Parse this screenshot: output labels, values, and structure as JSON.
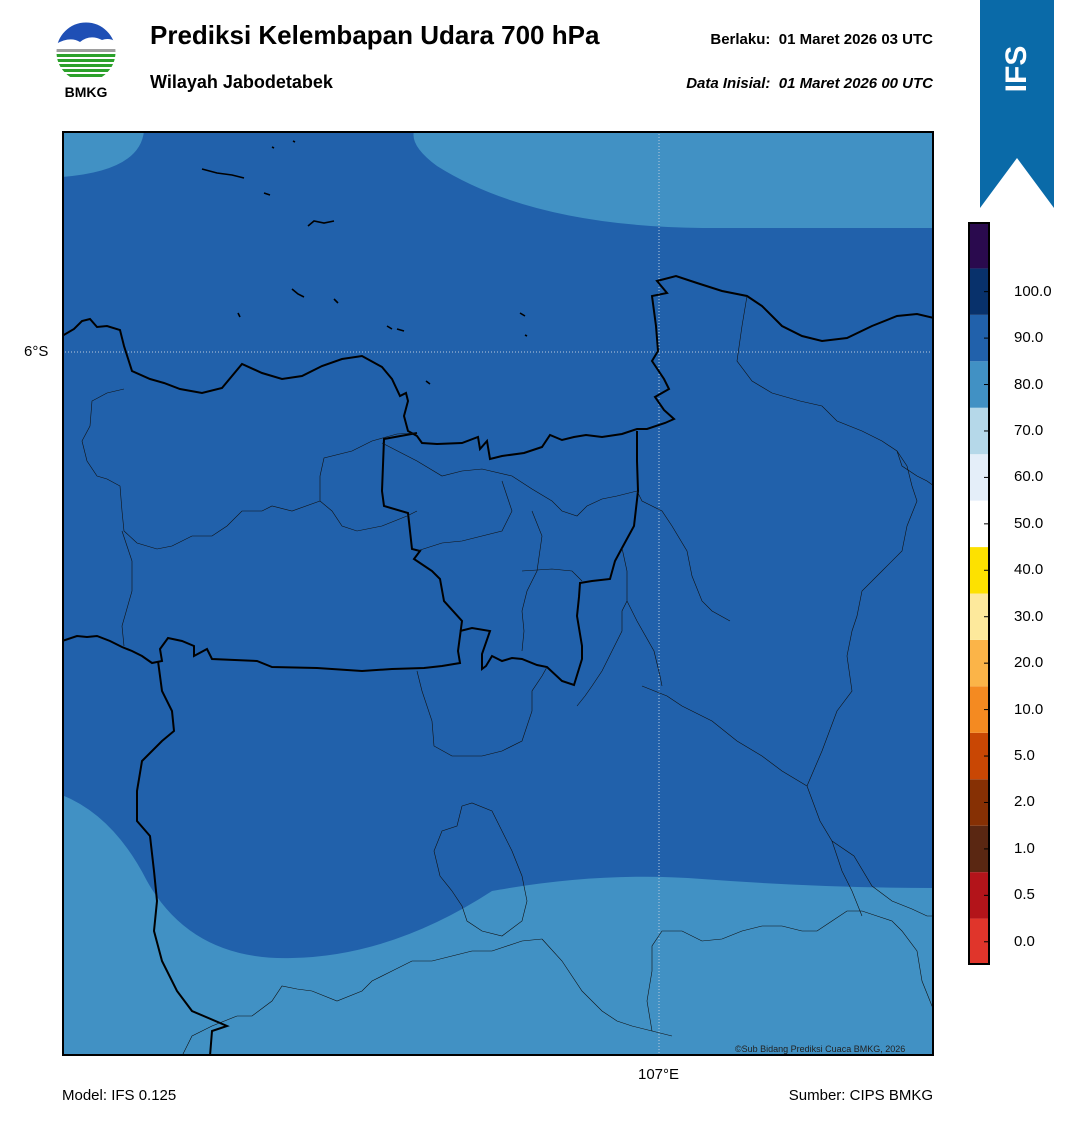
{
  "header": {
    "logo_text": "BMKG",
    "title": "Prediksi Kelembapan Udara 700 hPa",
    "subtitle": "Wilayah Jabodetabek",
    "valid_label": "Berlaku:",
    "valid_time": "01 Maret 2026 03 UTC",
    "init_label": "Data Inisial:",
    "init_time": "01 Maret 2026 00 UTC",
    "ribbon_text": "IFS",
    "ribbon_color": "#0a6aa8"
  },
  "map": {
    "lat_label": "6°S",
    "lon_label": "107°E",
    "credit": "©Sub Bidang Prediksi Cuaca BMKG, 2026",
    "fill_colors": {
      "dark": "#2161ab",
      "light": "#4191c4"
    }
  },
  "colorbar": {
    "levels": [
      {
        "label": "0.0",
        "color": "#e0352b"
      },
      {
        "label": "0.5",
        "color": "#b3141a"
      },
      {
        "label": "1.0",
        "color": "#5a2712"
      },
      {
        "label": "2.0",
        "color": "#863004"
      },
      {
        "label": "5.0",
        "color": "#c94704"
      },
      {
        "label": "10.0",
        "color": "#f48a21"
      },
      {
        "label": "20.0",
        "color": "#fbb448"
      },
      {
        "label": "30.0",
        "color": "#fde99c"
      },
      {
        "label": "40.0",
        "color": "#fde100"
      },
      {
        "label": "50.0",
        "color": "#ffffff"
      },
      {
        "label": "60.0",
        "color": "#e4eef9"
      },
      {
        "label": "70.0",
        "color": "#b5d8e9"
      },
      {
        "label": "80.0",
        "color": "#4191c4"
      },
      {
        "label": "90.0",
        "color": "#2161ab"
      },
      {
        "label": "100.0",
        "color": "#08316b"
      },
      {
        "label": "",
        "color": "#2a0a4e"
      }
    ]
  },
  "footer": {
    "model": "Model: IFS 0.125",
    "source": "Sumber: CIPS BMKG"
  }
}
